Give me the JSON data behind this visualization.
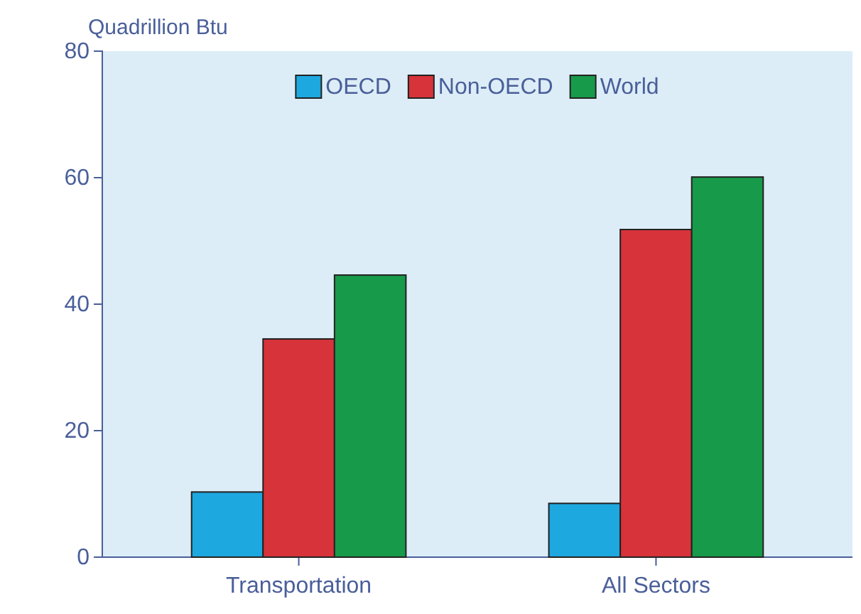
{
  "chart_data": {
    "type": "bar",
    "ylabel": "Quadrillion Btu",
    "categories": [
      "Transportation",
      "All Sectors"
    ],
    "series": [
      {
        "name": "OECD",
        "color": "#1ea8e0",
        "values": [
          10.3,
          8.5
        ]
      },
      {
        "name": "Non-OECD",
        "color": "#d7333a",
        "values": [
          34.5,
          51.8
        ]
      },
      {
        "name": "World",
        "color": "#179a4a",
        "values": [
          44.6,
          60.1
        ]
      }
    ],
    "ylim": [
      0,
      80
    ],
    "yticks": [
      0,
      20,
      40,
      60,
      80
    ],
    "grid": false,
    "legend": "top"
  }
}
